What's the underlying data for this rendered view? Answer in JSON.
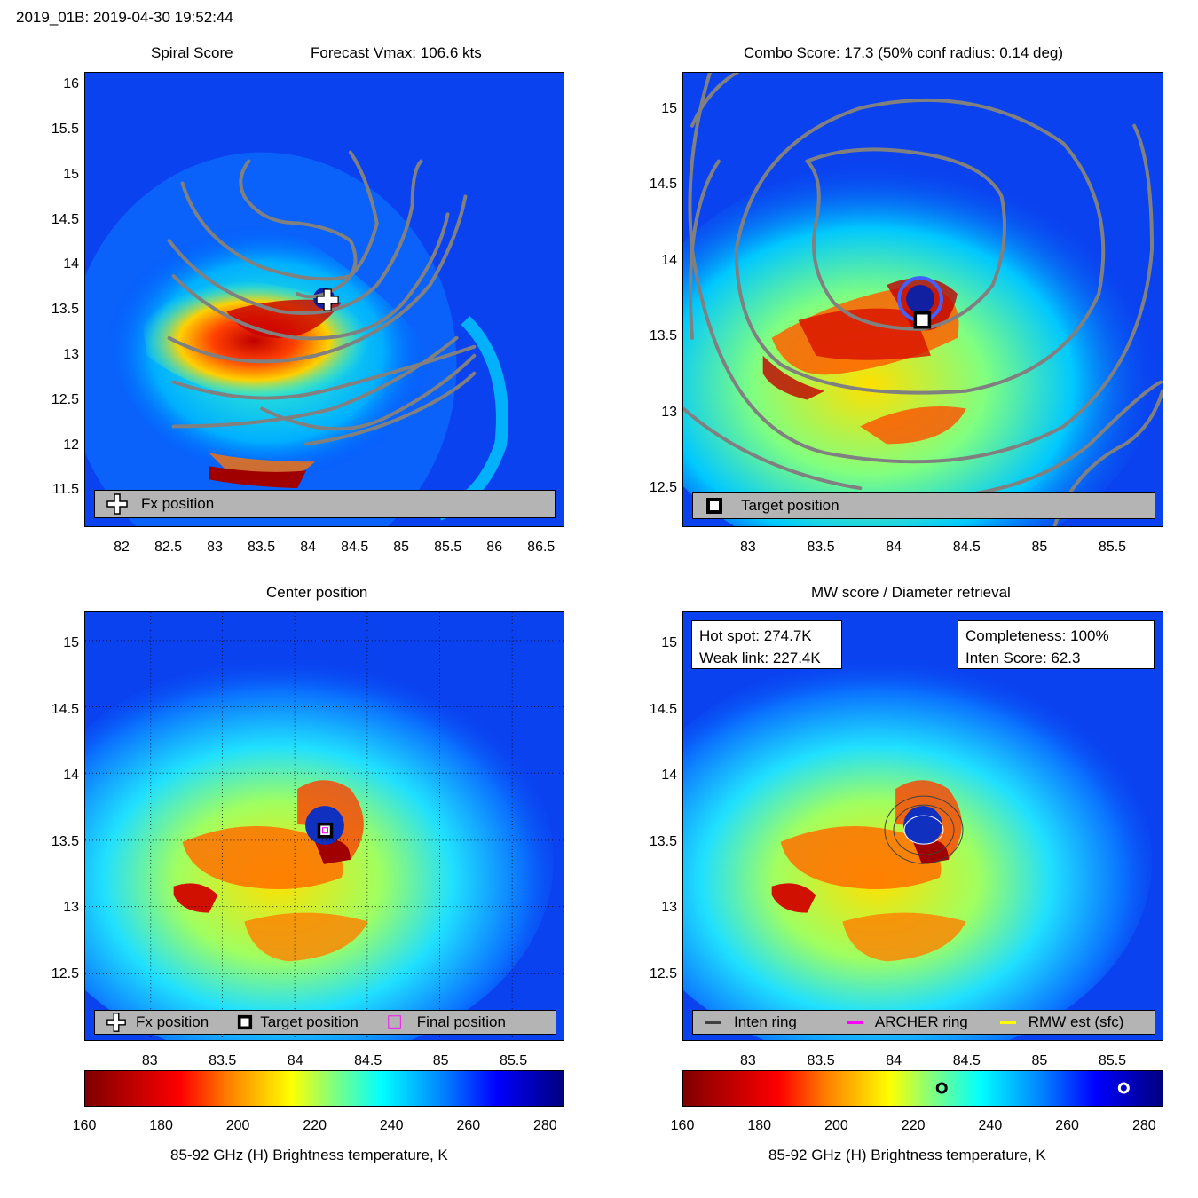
{
  "header": {
    "title": "2019_01B: 2019-04-30 19:52:44"
  },
  "panels": {
    "spiral": {
      "title_left": "Spiral Score",
      "title_right": "Forecast Vmax: 106.6 kts",
      "legend": {
        "fx_label": "Fx position"
      }
    },
    "combo": {
      "title": "Combo Score: 17.3  (50% conf radius: 0.14 deg)",
      "legend": {
        "target_label": "Target position"
      }
    },
    "center": {
      "title": "Center position",
      "legend": {
        "fx_label": "Fx position",
        "target_label": "Target position",
        "final_label": "Final position"
      }
    },
    "mw": {
      "title": "MW score / Diameter retrieval",
      "hot_spot": "Hot spot: 274.7K",
      "weak_link": "Weak link: 227.4K",
      "completeness": "Completeness: 100%",
      "inten_score": "Inten Score: 62.3",
      "legend": {
        "inten_ring": "Inten ring",
        "archer_ring": "ARCHER ring",
        "rmw": "RMW est (sfc)"
      }
    }
  },
  "colorbar": {
    "label": "85-92 GHz (H) Brightness temperature, K",
    "ticks": [
      "160",
      "180",
      "200",
      "220",
      "240",
      "260",
      "280"
    ],
    "range": [
      160,
      285
    ],
    "weak_link_k": 227.4,
    "hot_spot_k": 274.7
  },
  "colors": {
    "legend_bg": "#b4b4b4",
    "contour": "#808080",
    "archer_ring": "#ff00ff",
    "rmw_ring": "#ffff00",
    "inten_ring": "#404040"
  },
  "chart_data": [
    {
      "type": "heatmap",
      "title": "Spiral Score",
      "subtitle": "Forecast Vmax: 106.6 kts",
      "x_ticks": [
        "82",
        "82.5",
        "83",
        "83.5",
        "84",
        "84.5",
        "85",
        "85.5",
        "86",
        "86.5"
      ],
      "y_ticks": [
        "16",
        "15.5",
        "15",
        "14.5",
        "14",
        "13.5",
        "13",
        "12.5",
        "12",
        "11.5"
      ],
      "xlim": [
        81.6,
        86.75
      ],
      "ylim": [
        11.1,
        16.15
      ],
      "fx_position": [
        84.2,
        13.63
      ]
    },
    {
      "type": "heatmap",
      "title": "Combo Score: 17.3  (50% conf radius: 0.14 deg)",
      "x_ticks": [
        "83",
        "83.5",
        "84",
        "84.5",
        "85",
        "85.5"
      ],
      "y_ticks": [
        "15",
        "14.5",
        "14",
        "13.5",
        "13",
        "12.5"
      ],
      "xlim": [
        82.55,
        85.85
      ],
      "ylim": [
        12.25,
        15.25
      ],
      "target_position": [
        84.19,
        13.62
      ]
    },
    {
      "type": "heatmap",
      "title": "Center position",
      "x_ticks": [
        "83",
        "83.5",
        "84",
        "84.5",
        "85",
        "85.5"
      ],
      "y_ticks": [
        "15",
        "14.5",
        "14",
        "13.5",
        "13",
        "12.5"
      ],
      "xlim": [
        82.55,
        85.85
      ],
      "ylim": [
        12.0,
        15.25
      ],
      "target_position": [
        84.2,
        13.6
      ]
    },
    {
      "type": "heatmap",
      "title": "MW score / Diameter retrieval",
      "x_ticks": [
        "83",
        "83.5",
        "84",
        "84.5",
        "85",
        "85.5"
      ],
      "y_ticks": [
        "15",
        "14.5",
        "14",
        "13.5",
        "13",
        "12.5"
      ],
      "xlim": [
        82.55,
        85.85
      ],
      "ylim": [
        12.0,
        15.25
      ],
      "ring_center": [
        84.2,
        13.55
      ]
    }
  ]
}
